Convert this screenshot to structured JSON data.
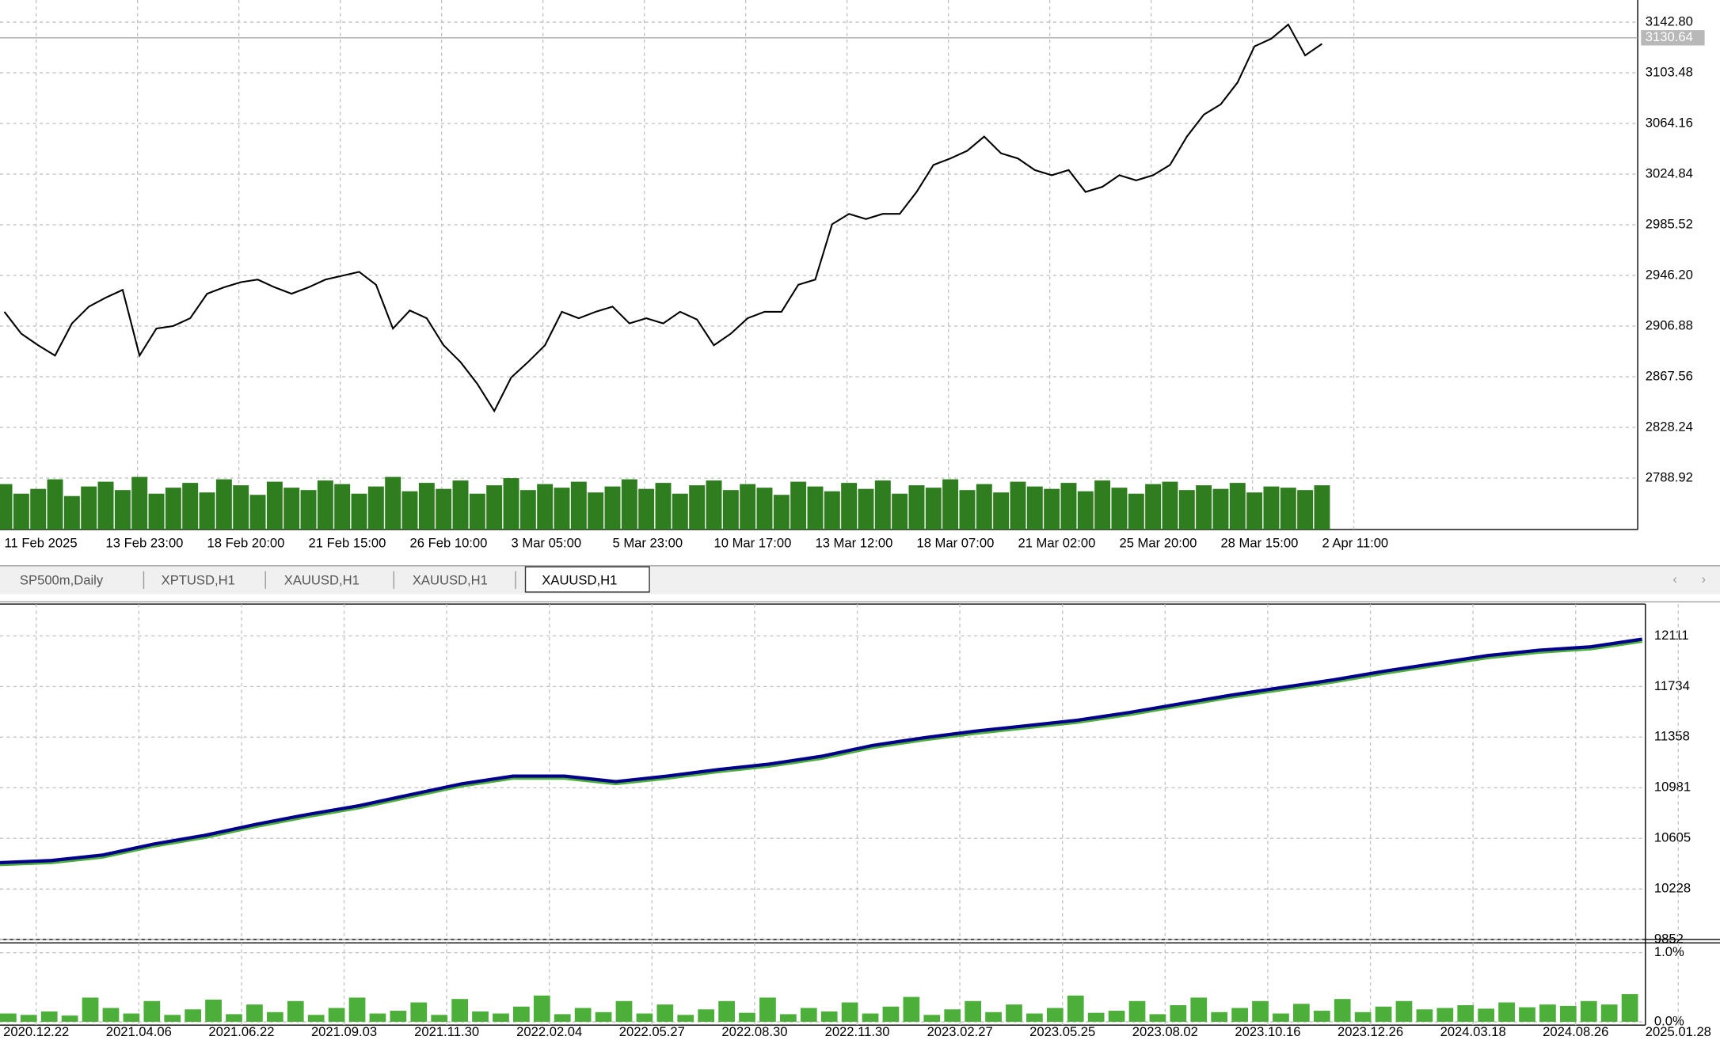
{
  "tabs": [
    "SP500m,Daily",
    "XPTUSD,H1",
    "XAUUSD,H1",
    "XAUUSD,H1",
    "XAUUSD,H1"
  ],
  "active_tab": 4,
  "chart_data": [
    {
      "type": "line",
      "color": "#000000",
      "volume_color": "#2e7d1e",
      "grid": true,
      "categories": [
        "11 Feb 2025",
        null,
        null,
        null,
        null,
        null,
        "13 Feb 23:00",
        null,
        null,
        null,
        null,
        null,
        "18 Feb 20:00",
        null,
        null,
        null,
        null,
        null,
        "21 Feb 15:00",
        null,
        null,
        null,
        null,
        null,
        "26 Feb 10:00",
        null,
        null,
        null,
        null,
        null,
        "3 Mar 05:00",
        null,
        null,
        null,
        null,
        null,
        "5 Mar 23:00",
        null,
        null,
        null,
        null,
        null,
        "10 Mar 17:00",
        null,
        null,
        null,
        null,
        null,
        "13 Mar 12:00",
        null,
        null,
        null,
        null,
        null,
        "18 Mar 07:00",
        null,
        null,
        null,
        null,
        null,
        "21 Mar 02:00",
        null,
        null,
        null,
        null,
        null,
        "25 Mar 20:00",
        null,
        null,
        null,
        null,
        null,
        "28 Mar 15:00",
        null,
        null,
        null,
        null,
        null,
        "2 Apr 11:00"
      ],
      "values": [
        2918,
        2901,
        2892,
        2884,
        2909,
        2922,
        2929,
        2935,
        2884,
        2905,
        2907,
        2913,
        2932,
        2937,
        2941,
        2943,
        2937,
        2932,
        2937,
        2943,
        2946,
        2949,
        2939,
        2905,
        2919,
        2913,
        2892,
        2879,
        2862,
        2841,
        2867,
        2879,
        2892,
        2918,
        2913,
        2918,
        2922,
        2909,
        2913,
        2909,
        2918,
        2912,
        2892,
        2901,
        2913,
        2918,
        2918,
        2939,
        2943,
        2986,
        2994,
        2990,
        2994,
        2994,
        3011,
        3032,
        3037,
        3043,
        3054,
        3041,
        3037,
        3028,
        3024,
        3028,
        3011,
        3015,
        3024,
        3020,
        3024,
        3032,
        3054,
        3071,
        3079,
        3096,
        3124,
        3130,
        3141,
        3117,
        3126
      ],
      "volume": [
        38,
        30,
        34,
        42,
        28,
        36,
        40,
        33,
        44,
        30,
        35,
        39,
        31,
        42,
        37,
        29,
        40,
        35,
        33,
        41,
        38,
        30,
        36,
        44,
        32,
        39,
        34,
        41,
        30,
        37,
        43,
        33,
        38,
        35,
        40,
        31,
        36,
        42,
        34,
        39,
        30,
        37,
        41,
        33,
        38,
        35,
        29,
        40,
        36,
        32,
        39,
        34,
        41,
        30,
        37,
        35,
        42,
        33,
        38,
        31,
        40,
        36,
        34,
        39,
        32,
        41,
        35,
        30,
        38,
        40,
        33,
        37,
        34,
        39,
        31,
        36,
        35,
        33,
        37
      ],
      "current_price": 3130.64,
      "ylim": [
        2749,
        3160
      ],
      "yticks": [
        {
          "value": 3142.8,
          "label": "3142.80"
        },
        3103.48,
        3064.16,
        3024.84,
        2985.52,
        {
          "value": 2946.2,
          "label": "2946.20"
        },
        2906.88,
        2867.56,
        2828.24,
        2788.92
      ]
    },
    {
      "type": "line",
      "grid": true,
      "categories": [
        "2020.12.22",
        null,
        "2021.04.06",
        null,
        "2021.06.22",
        null,
        "2021.09.03",
        null,
        "2021.11.30",
        null,
        "2022.02.04",
        null,
        "2022.05.27",
        null,
        "2022.08.30",
        null,
        "2022.11.30",
        null,
        "2023.02.27",
        null,
        "2023.05.25",
        null,
        "2023.08.02",
        null,
        "2023.10.16",
        null,
        "2023.12.26",
        null,
        "2024.03.18",
        null,
        "2024.08.26",
        null,
        "2025.01.28"
      ],
      "series": [
        {
          "color": "#4caf3a",
          "values": [
            10410,
            10425,
            10466,
            10548,
            10613,
            10695,
            10768,
            10833,
            10915,
            10996,
            11053,
            11053,
            11012,
            11053,
            11102,
            11143,
            11200,
            11281,
            11338,
            11387,
            11428,
            11469,
            11526,
            11591,
            11656,
            11713,
            11770,
            11835,
            11893,
            11950,
            11990,
            12015,
            12072
          ]
        },
        {
          "color": "#00008b",
          "values": [
            10424,
            10440,
            10481,
            10563,
            10628,
            10710,
            10783,
            10848,
            10930,
            11011,
            11068,
            11068,
            11027,
            11068,
            11117,
            11158,
            11215,
            11296,
            11353,
            11402,
            11443,
            11484,
            11541,
            11606,
            11671,
            11728,
            11785,
            11850,
            11908,
            11965,
            12005,
            12030,
            12087
          ]
        }
      ],
      "ylim": [
        9852,
        12315
      ],
      "yticks": [
        12111,
        11734,
        11358,
        10981,
        10605,
        10228,
        9852
      ]
    },
    {
      "type": "bar",
      "color": "#4caf3a",
      "grid": true,
      "values": [
        0.12,
        0.1,
        0.15,
        0.09,
        0.35,
        0.2,
        0.12,
        0.3,
        0.1,
        0.18,
        0.32,
        0.11,
        0.25,
        0.14,
        0.3,
        0.1,
        0.2,
        0.35,
        0.12,
        0.16,
        0.28,
        0.1,
        0.33,
        0.15,
        0.12,
        0.22,
        0.38,
        0.11,
        0.2,
        0.14,
        0.3,
        0.12,
        0.25,
        0.1,
        0.18,
        0.3,
        0.13,
        0.35,
        0.11,
        0.2,
        0.15,
        0.28,
        0.12,
        0.22,
        0.36,
        0.1,
        0.18,
        0.3,
        0.14,
        0.25,
        0.12,
        0.2,
        0.38,
        0.13,
        0.16,
        0.3,
        0.11,
        0.24,
        0.35,
        0.14,
        0.2,
        0.3,
        0.12,
        0.26,
        0.16,
        0.33,
        0.14,
        0.22,
        0.3,
        0.18,
        0.2,
        0.24,
        0.19,
        0.28,
        0.21,
        0.25,
        0.23,
        0.3,
        0.25,
        0.4
      ],
      "ylim": [
        0,
        1.11
      ],
      "yticks": [
        {
          "value": 1,
          "label": "1.0%"
        },
        {
          "value": 0,
          "label": "0.0%"
        }
      ]
    }
  ]
}
